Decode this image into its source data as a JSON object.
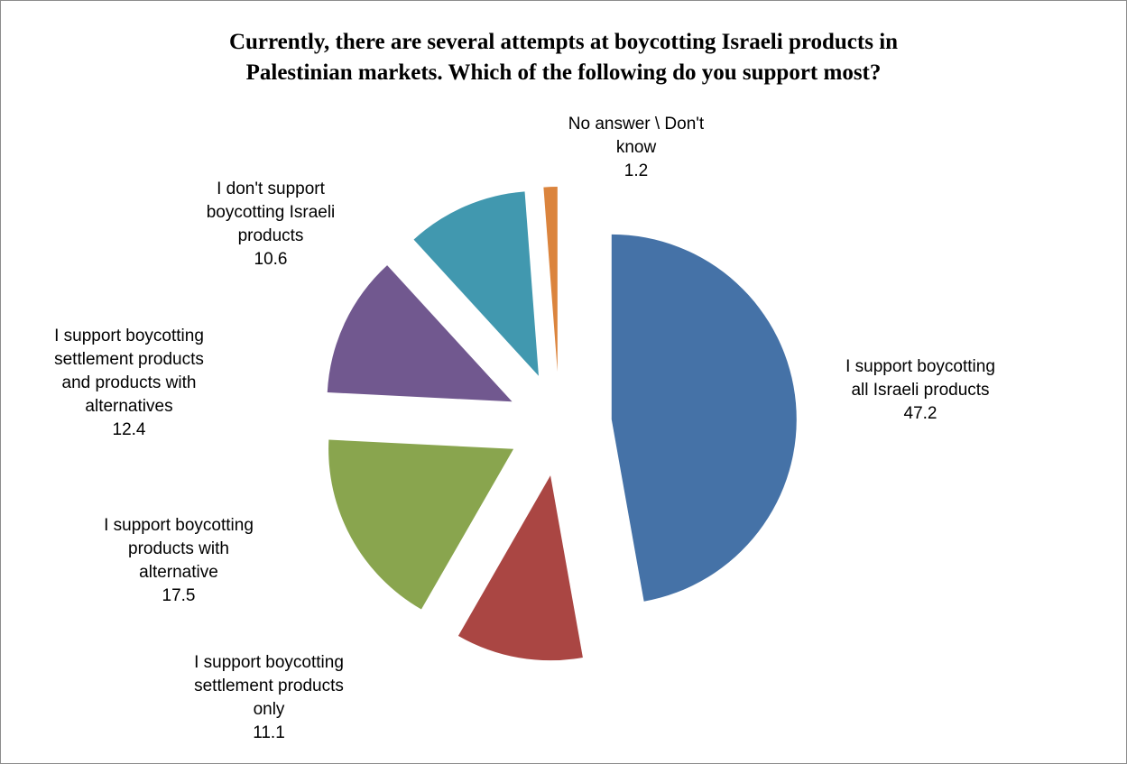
{
  "chart_data": {
    "type": "pie",
    "title_lines": [
      "Currently, there are several attempts at boycotting Israeli products in",
      "Palestinian markets. Which of the following do you support most?"
    ],
    "slices": [
      {
        "label_lines": [
          "I support boycotting",
          "all Israeli products"
        ],
        "value": 47.2,
        "value_text": "47.2",
        "color": "#4572A7"
      },
      {
        "label_lines": [
          "I support boycotting",
          "settlement products",
          "only"
        ],
        "value": 11.1,
        "value_text": "11.1",
        "color": "#AA4643"
      },
      {
        "label_lines": [
          "I support boycotting",
          "products with",
          "alternative"
        ],
        "value": 17.5,
        "value_text": "17.5",
        "color": "#89A54E"
      },
      {
        "label_lines": [
          "I support boycotting",
          "settlement products",
          "and products with",
          "alternatives"
        ],
        "value": 12.4,
        "value_text": "12.4",
        "color": "#71588F"
      },
      {
        "label_lines": [
          "I don't support",
          "boycotting Israeli",
          "products"
        ],
        "value": 10.6,
        "value_text": "10.6",
        "color": "#4198AF"
      },
      {
        "label_lines": [
          "No answer \\ Don't",
          "know"
        ],
        "value": 1.2,
        "value_text": "1.2",
        "color": "#DB843D"
      }
    ]
  }
}
